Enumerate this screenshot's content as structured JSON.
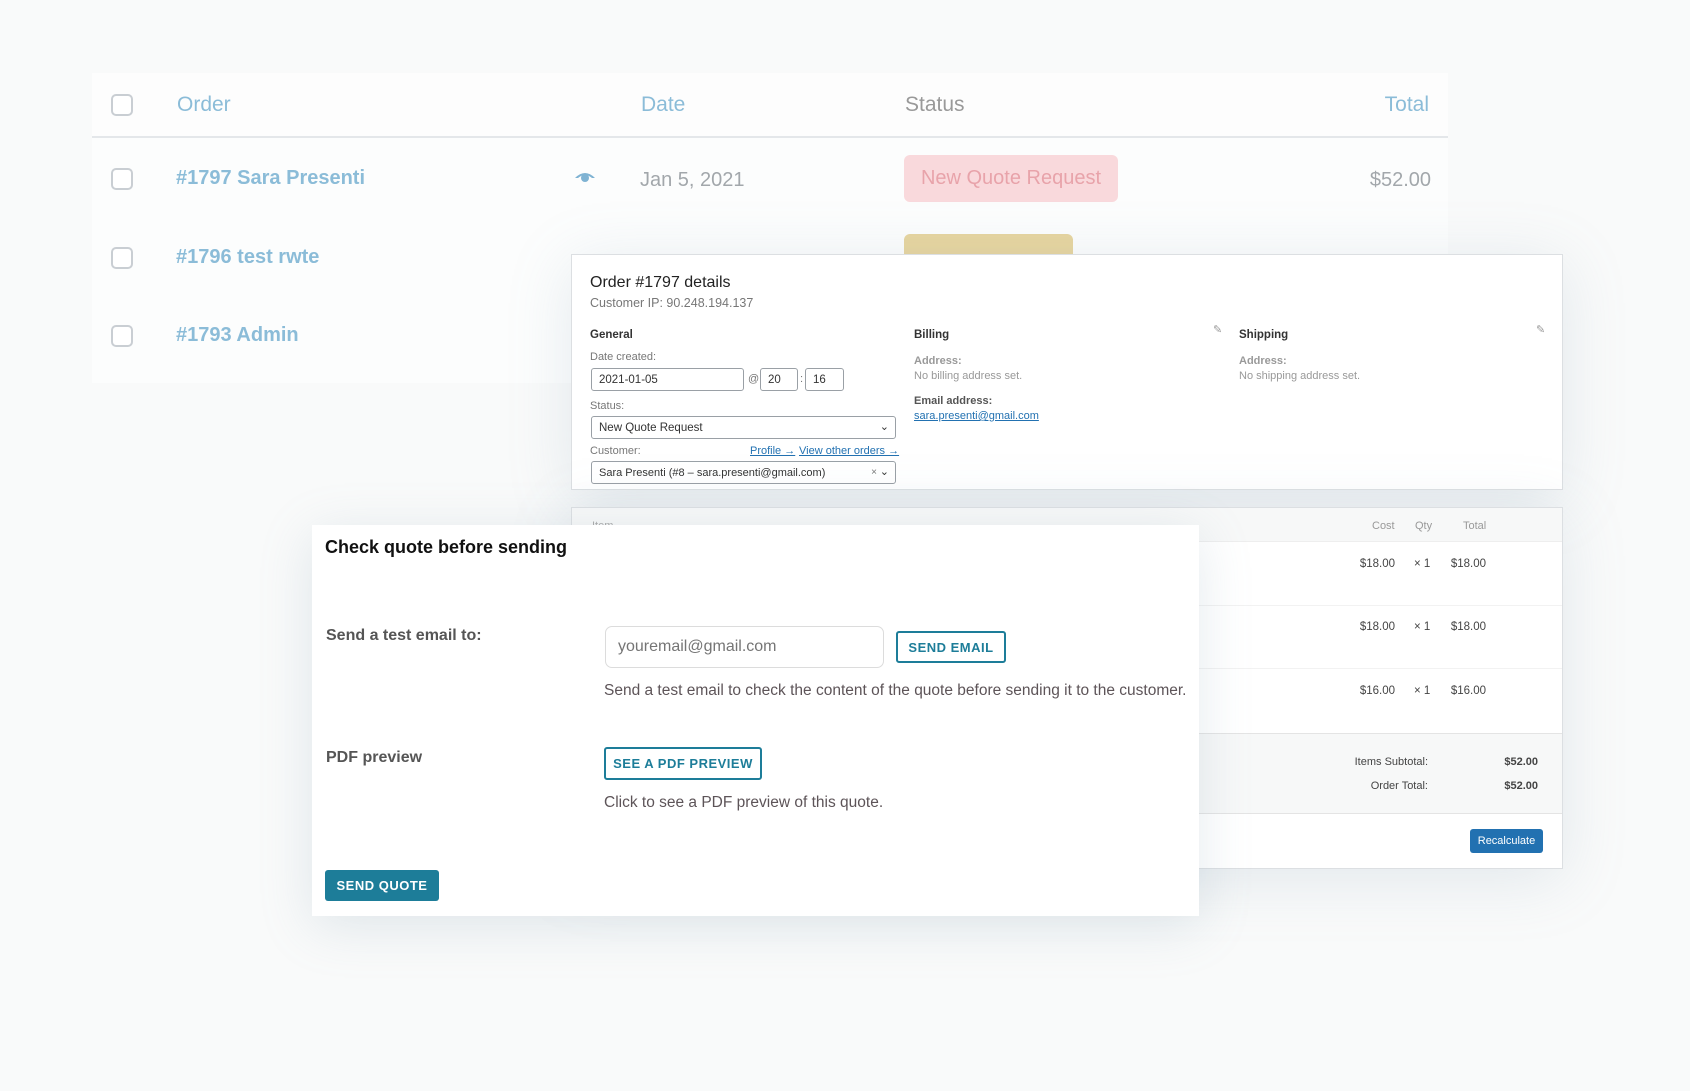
{
  "orders_table": {
    "headers": {
      "order": "Order",
      "date": "Date",
      "status": "Status",
      "total": "Total"
    },
    "rows": [
      {
        "order": "#1797 Sara Presenti",
        "date": "Jan 5, 2021",
        "status": "New Quote Request",
        "total": "$52.00"
      },
      {
        "order": "#1796 test rwte"
      },
      {
        "order": "#1793 Admin"
      }
    ],
    "colors": {
      "link": "#8bbcd8",
      "badge_bg": "#f9d9dc",
      "badge_text": "#e8a3aa",
      "badge2_bg": "#e7d59f"
    }
  },
  "order_details": {
    "title": "Order #1797 details",
    "customer_ip": "Customer IP: 90.248.194.137",
    "general": {
      "heading": "General",
      "date_label": "Date created:",
      "date": "2021-01-05",
      "at": "@",
      "hour": "20",
      "colon": ":",
      "minute": "16",
      "status_label": "Status:",
      "status": "New Quote Request",
      "customer_label": "Customer:",
      "profile_link": "Profile →",
      "other_orders_link": "View other orders →",
      "customer": "Sara Presenti (#8 – sara.presenti@gmail.com)",
      "clear": "×"
    },
    "billing": {
      "heading": "Billing",
      "address_label": "Address:",
      "address": "No billing address set.",
      "email_label": "Email address:",
      "email": "sara.presenti@gmail.com"
    },
    "shipping": {
      "heading": "Shipping",
      "address_label": "Address:",
      "address": "No shipping address set."
    }
  },
  "items": {
    "headers": {
      "item": "Item",
      "cost": "Cost",
      "qty": "Qty",
      "total": "Total"
    },
    "rows": [
      {
        "cost": "$18.00",
        "qty": "× 1",
        "total": "$18.00"
      },
      {
        "cost": "$18.00",
        "qty": "× 1",
        "total": "$18.00"
      },
      {
        "cost": "$16.00",
        "qty": "× 1",
        "total": "$16.00"
      }
    ],
    "subtotal_label": "Items Subtotal:",
    "subtotal": "$52.00",
    "order_total_label": "Order Total:",
    "order_total": "$52.00",
    "recalculate": "Recalculate"
  },
  "modal": {
    "title": "Check quote before sending",
    "test_email_label": "Send a test email to:",
    "email_placeholder": "youremail@gmail.com",
    "send_email": "SEND EMAIL",
    "test_email_help": "Send a test email to check the content of the quote before sending it to the customer.",
    "pdf_label": "PDF preview",
    "pdf_button": "SEE A PDF PREVIEW",
    "pdf_help": "Click to see a PDF preview of this quote.",
    "send_quote": "SEND QUOTE",
    "accent": "#1d7d99"
  }
}
